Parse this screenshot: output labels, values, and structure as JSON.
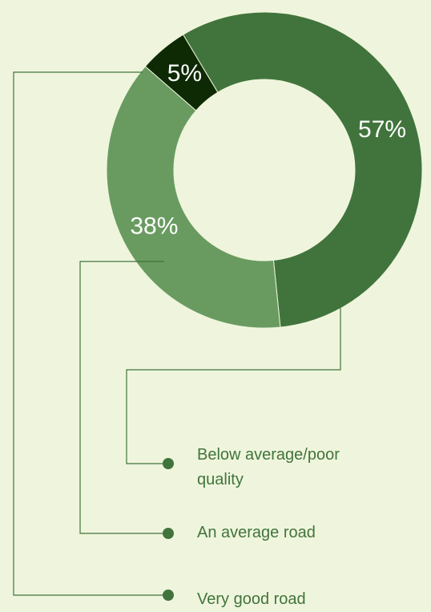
{
  "chart_data": {
    "type": "donut",
    "categories": [
      "Below average/poor quality",
      "An average road",
      "Very good road"
    ],
    "values": [
      57,
      38,
      5
    ],
    "value_labels": [
      "57%",
      "38%",
      "5%"
    ],
    "colors": [
      "#41743c",
      "#699b60",
      "#0e2a05"
    ]
  }
}
